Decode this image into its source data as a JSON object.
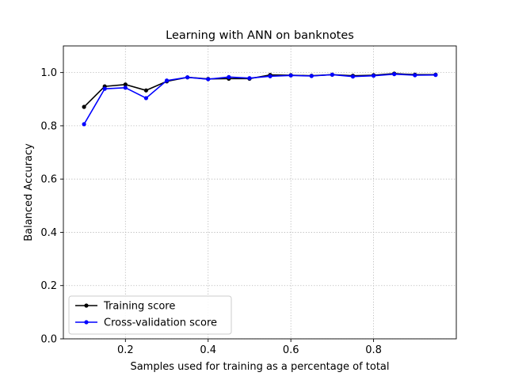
{
  "chart_data": {
    "type": "line",
    "title": "Learning with ANN on banknotes",
    "xlabel": "Samples used for training as a percentage of total",
    "ylabel": "Balanced Accuracy",
    "xlim": [
      0.05,
      1.0
    ],
    "ylim": [
      0.0,
      1.1
    ],
    "xticks": [
      0.2,
      0.4,
      0.6,
      0.8
    ],
    "xtick_labels": [
      "0.2",
      "0.4",
      "0.6",
      "0.8"
    ],
    "yticks": [
      0.0,
      0.2,
      0.4,
      0.6,
      0.8,
      1.0
    ],
    "ytick_labels": [
      "0.0",
      "0.2",
      "0.4",
      "0.6",
      "0.8",
      "1.0"
    ],
    "grid": true,
    "legend_position": "lower-left",
    "x": [
      0.1,
      0.15,
      0.2,
      0.25,
      0.3,
      0.35,
      0.4,
      0.45,
      0.5,
      0.55,
      0.6,
      0.65,
      0.7,
      0.75,
      0.8,
      0.85,
      0.9,
      0.95
    ],
    "series": [
      {
        "name": "Training score",
        "color": "#000000",
        "values": [
          0.871,
          0.948,
          0.955,
          0.933,
          0.967,
          0.982,
          0.976,
          0.977,
          0.977,
          0.991,
          0.99,
          0.988,
          0.992,
          0.988,
          0.99,
          0.996,
          0.992,
          0.992
        ]
      },
      {
        "name": "Cross-validation score",
        "color": "#0000ff",
        "values": [
          0.806,
          0.939,
          0.943,
          0.904,
          0.97,
          0.982,
          0.975,
          0.983,
          0.979,
          0.986,
          0.989,
          0.987,
          0.992,
          0.985,
          0.988,
          0.994,
          0.99,
          0.991
        ]
      }
    ]
  }
}
